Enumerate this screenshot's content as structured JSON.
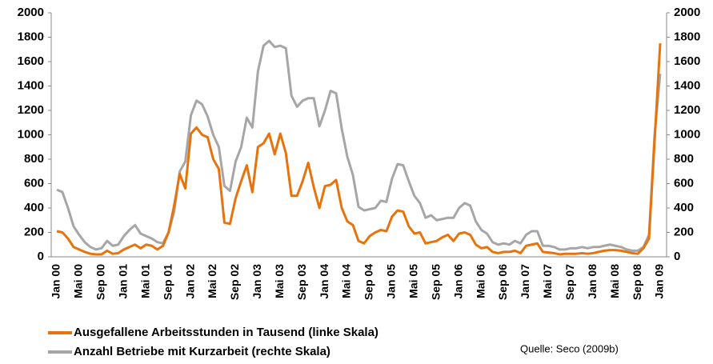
{
  "chart_data": {
    "type": "line",
    "categories": [
      "Jan 00",
      null,
      null,
      null,
      "Mai 00",
      null,
      null,
      null,
      "Sep 00",
      null,
      null,
      null,
      "Jan 01",
      null,
      null,
      null,
      "Mai 01",
      null,
      null,
      null,
      "Sep 01",
      null,
      null,
      null,
      "Jan 02",
      null,
      null,
      null,
      "Mai 02",
      null,
      null,
      null,
      "Sep 02",
      null,
      null,
      null,
      "Jan 03",
      null,
      null,
      null,
      "Mai 03",
      null,
      null,
      null,
      "Sep 03",
      null,
      null,
      null,
      "Jan 04",
      null,
      null,
      null,
      "Mai 04",
      null,
      null,
      null,
      "Sep 04",
      null,
      null,
      null,
      "Jan 05",
      null,
      null,
      null,
      "Mai 05",
      null,
      null,
      null,
      "Sep 05",
      null,
      null,
      null,
      "Jan 06",
      null,
      null,
      null,
      "Mai 06",
      null,
      null,
      null,
      "Sep 06",
      null,
      null,
      null,
      "Jan 07",
      null,
      null,
      null,
      "Mai 07",
      null,
      null,
      null,
      "Sep 07",
      null,
      null,
      null,
      "Jan 08",
      null,
      null,
      null,
      "Mai 08",
      null,
      null,
      null,
      "Sep 08",
      null,
      null,
      null,
      "Jan 09"
    ],
    "series": [
      {
        "name": "Ausgefallene Arbeitsstunden in Tausend (linke Skala)",
        "color": "#e8730c",
        "axis": "y",
        "values": [
          210,
          200,
          150,
          80,
          60,
          40,
          25,
          20,
          20,
          50,
          25,
          30,
          60,
          80,
          100,
          70,
          100,
          90,
          60,
          90,
          200,
          420,
          680,
          560,
          1010,
          1060,
          1000,
          980,
          800,
          720,
          280,
          270,
          480,
          620,
          750,
          530,
          900,
          930,
          1010,
          840,
          1010,
          850,
          500,
          500,
          620,
          770,
          570,
          400,
          580,
          590,
          630,
          400,
          290,
          260,
          130,
          110,
          170,
          200,
          220,
          210,
          330,
          380,
          370,
          250,
          190,
          200,
          110,
          120,
          130,
          160,
          180,
          130,
          190,
          200,
          180,
          100,
          70,
          80,
          40,
          30,
          40,
          40,
          50,
          30,
          90,
          100,
          110,
          40,
          35,
          30,
          20,
          25,
          25,
          25,
          30,
          25,
          30,
          40,
          50,
          55,
          55,
          50,
          40,
          30,
          25,
          70,
          150,
          950,
          1750
        ]
      },
      {
        "name": "Anzahl Betriebe mit Kurzarbeit (rechte Skala)",
        "color": "#a6a6a6",
        "axis": "y2",
        "values": [
          550,
          530,
          400,
          250,
          180,
          120,
          80,
          60,
          70,
          130,
          90,
          100,
          170,
          220,
          260,
          190,
          170,
          150,
          120,
          110,
          200,
          370,
          700,
          780,
          1160,
          1280,
          1250,
          1150,
          1000,
          900,
          580,
          540,
          780,
          900,
          1140,
          1060,
          1520,
          1730,
          1770,
          1720,
          1730,
          1710,
          1320,
          1230,
          1280,
          1300,
          1300,
          1070,
          1200,
          1360,
          1340,
          1050,
          820,
          670,
          410,
          380,
          390,
          400,
          460,
          450,
          640,
          760,
          750,
          620,
          500,
          440,
          320,
          340,
          300,
          310,
          320,
          320,
          400,
          440,
          420,
          290,
          220,
          190,
          120,
          100,
          110,
          100,
          130,
          110,
          180,
          210,
          210,
          90,
          90,
          80,
          60,
          60,
          70,
          70,
          80,
          70,
          80,
          80,
          90,
          100,
          90,
          80,
          60,
          50,
          50,
          80,
          180,
          1000,
          1500
        ]
      }
    ],
    "ylim": [
      0,
      2000
    ],
    "yticks": [
      0,
      200,
      400,
      600,
      800,
      1000,
      1200,
      1400,
      1600,
      1800,
      2000
    ],
    "y2lim": [
      0,
      2000
    ],
    "y2ticks": [
      0,
      200,
      400,
      600,
      800,
      1000,
      1200,
      1400,
      1600,
      1800,
      2000
    ],
    "annotation": "Quelle: Seco (2009b)"
  }
}
